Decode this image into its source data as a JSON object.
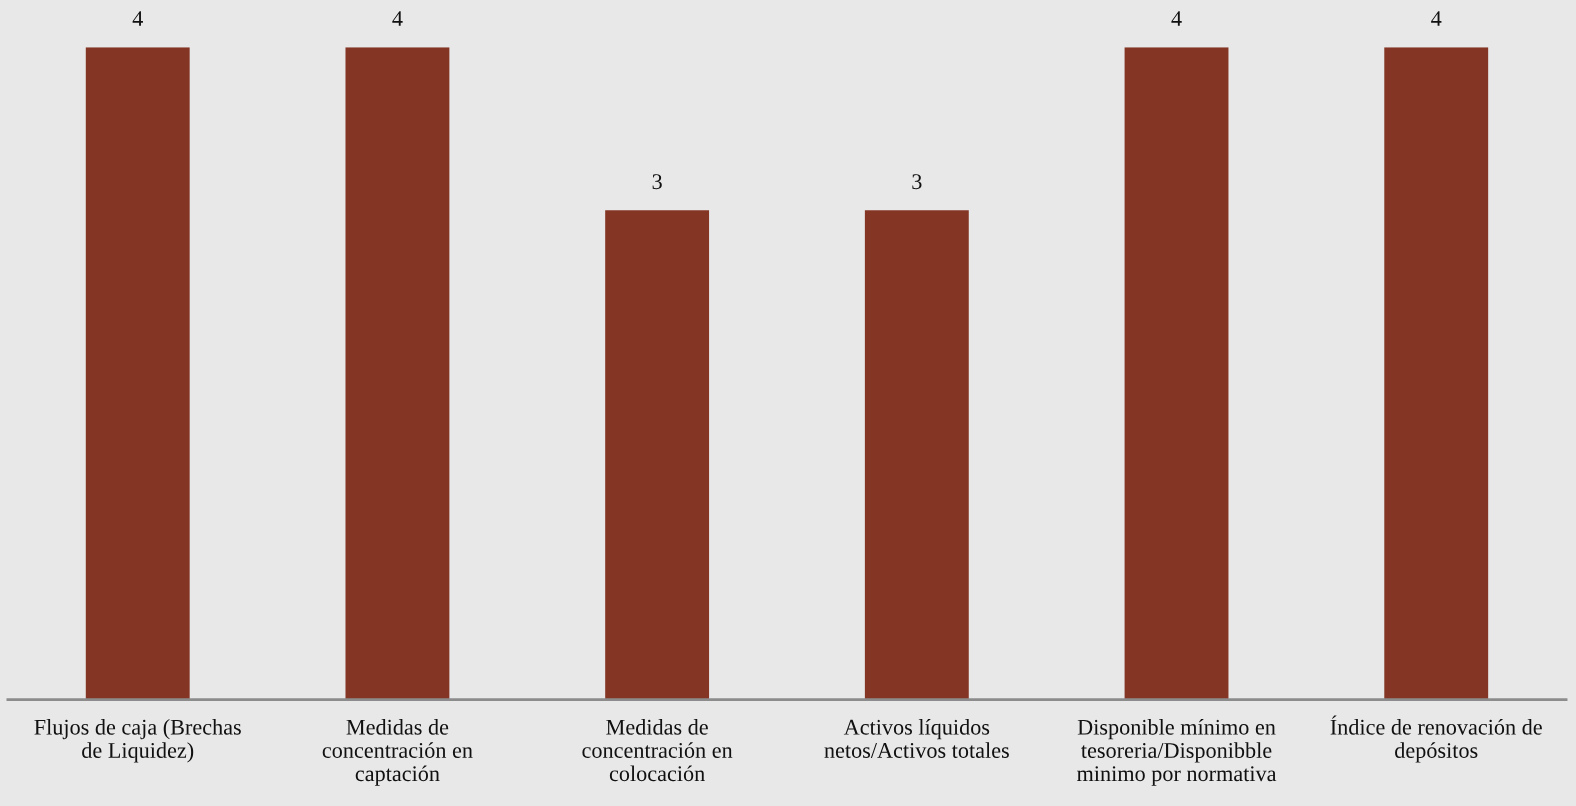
{
  "chart_data": {
    "type": "bar",
    "categories": [
      "Flujos de caja (Brechas\nde Liquidez)",
      "Medidas de\nconcentración en\ncaptación",
      "Medidas de\nconcentración en\ncolocación",
      "Activos líquidos\nnetos/Activos totales",
      "Disponible mínimo en\ntesoreria/Disponibble\nminimo por normativa",
      "Índice de renovación de\ndepósitos"
    ],
    "values": [
      4,
      4,
      3,
      3,
      4,
      4
    ],
    "color": "#843524",
    "data_labels": true,
    "tick_labels": "x",
    "grid": false,
    "legend": false
  }
}
